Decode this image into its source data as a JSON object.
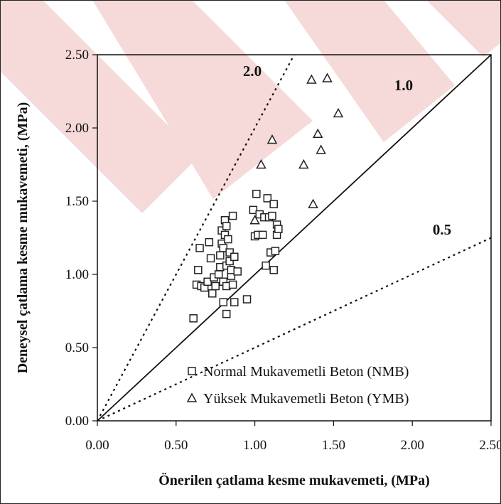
{
  "chart_data": {
    "type": "scatter",
    "title": "",
    "xlabel": "Önerilen çatlama kesme mukavemeti, (MPa)",
    "ylabel": "Deneysel çatlama kesme mukavemeti, (MPa)",
    "xlim": [
      0,
      2.5
    ],
    "ylim": [
      0,
      2.5
    ],
    "x_ticks": [
      "0.00",
      "0.50",
      "1.00",
      "1.50",
      "2.00",
      "2.50"
    ],
    "y_ticks": [
      "0.00",
      "0.50",
      "1.00",
      "1.50",
      "2.00",
      "2.50"
    ],
    "grid": false,
    "legend_position": "bottom-right",
    "reference_lines": [
      {
        "label": "2.0",
        "slope": 2.0,
        "style": "dotted"
      },
      {
        "label": "1.0",
        "slope": 1.0,
        "style": "solid"
      },
      {
        "label": "0.5",
        "slope": 0.5,
        "style": "dotted"
      }
    ],
    "series": [
      {
        "name": "Normal Mukavemetli Beton (NMB)",
        "marker": "square",
        "points": [
          [
            0.61,
            0.7
          ],
          [
            0.63,
            0.93
          ],
          [
            0.64,
            1.03
          ],
          [
            0.65,
            1.18
          ],
          [
            0.66,
            0.92
          ],
          [
            0.68,
            0.91
          ],
          [
            0.7,
            0.95
          ],
          [
            0.71,
            1.22
          ],
          [
            0.72,
            1.11
          ],
          [
            0.73,
            0.87
          ],
          [
            0.74,
            0.98
          ],
          [
            0.75,
            0.92
          ],
          [
            0.77,
            1.0
          ],
          [
            0.78,
            1.05
          ],
          [
            0.78,
            1.13
          ],
          [
            0.79,
            1.21
          ],
          [
            0.79,
            1.3
          ],
          [
            0.8,
            0.81
          ],
          [
            0.8,
            0.95
          ],
          [
            0.8,
            1.18
          ],
          [
            0.81,
            1.27
          ],
          [
            0.81,
            1.37
          ],
          [
            0.82,
            0.73
          ],
          [
            0.82,
            0.92
          ],
          [
            0.82,
            1.06
          ],
          [
            0.82,
            1.33
          ],
          [
            0.83,
            1.24
          ],
          [
            0.84,
            1.09
          ],
          [
            0.84,
            1.15
          ],
          [
            0.85,
            0.99
          ],
          [
            0.85,
            1.03
          ],
          [
            0.86,
            0.93
          ],
          [
            0.86,
            1.4
          ],
          [
            0.87,
            0.81
          ],
          [
            0.87,
            1.12
          ],
          [
            0.89,
            1.02
          ],
          [
            0.95,
            0.83
          ],
          [
            0.99,
            1.44
          ],
          [
            1.0,
            1.26
          ],
          [
            1.01,
            1.55
          ],
          [
            1.02,
            1.27
          ],
          [
            1.03,
            1.41
          ],
          [
            1.05,
            1.27
          ],
          [
            1.06,
            1.39
          ],
          [
            1.07,
            1.06
          ],
          [
            1.08,
            1.52
          ],
          [
            1.09,
            1.39
          ],
          [
            1.1,
            1.15
          ],
          [
            1.11,
            1.4
          ],
          [
            1.12,
            1.03
          ],
          [
            1.12,
            1.48
          ],
          [
            1.13,
            1.16
          ],
          [
            1.14,
            1.27
          ],
          [
            1.14,
            1.34
          ],
          [
            1.15,
            1.31
          ]
        ]
      },
      {
        "name": "Yüksek Mukavemetli Beton (YMB)",
        "marker": "triangle",
        "points": [
          [
            1.0,
            1.37
          ],
          [
            1.04,
            1.75
          ],
          [
            1.11,
            1.92
          ],
          [
            1.31,
            1.75
          ],
          [
            1.36,
            2.33
          ],
          [
            1.37,
            1.48
          ],
          [
            1.4,
            1.96
          ],
          [
            1.42,
            1.85
          ],
          [
            1.46,
            2.34
          ],
          [
            1.53,
            2.1
          ]
        ]
      }
    ]
  }
}
